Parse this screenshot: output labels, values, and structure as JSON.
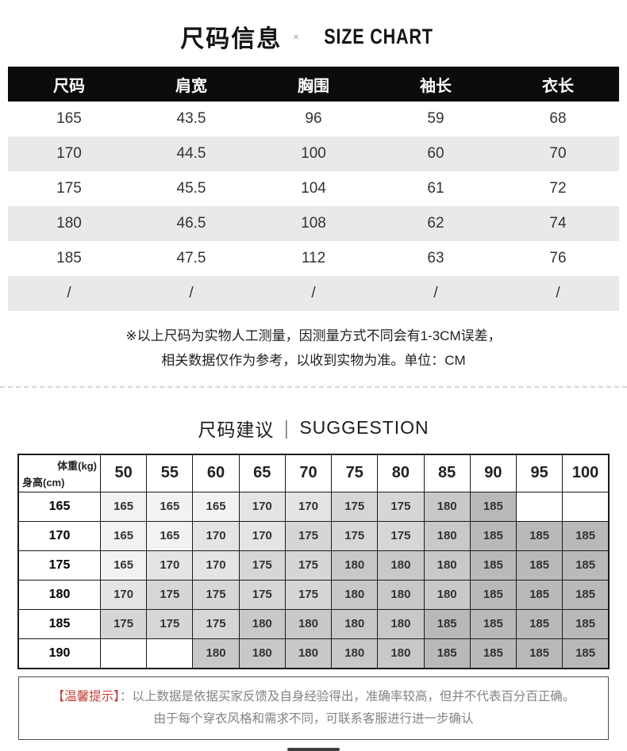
{
  "page": {
    "title_cn": "尺码信息",
    "title_sep": "×",
    "title_en": "SIZE CHART"
  },
  "size_table": {
    "headers": [
      "尺码",
      "肩宽",
      "胸围",
      "袖长",
      "衣长"
    ],
    "rows": [
      [
        "165",
        "43.5",
        "96",
        "59",
        "68"
      ],
      [
        "170",
        "44.5",
        "100",
        "60",
        "70"
      ],
      [
        "175",
        "45.5",
        "104",
        "61",
        "72"
      ],
      [
        "180",
        "46.5",
        "108",
        "62",
        "74"
      ],
      [
        "185",
        "47.5",
        "112",
        "63",
        "76"
      ],
      [
        "/",
        "/",
        "/",
        "/",
        "/"
      ]
    ]
  },
  "notes": {
    "line1": "※以上尺码为实物人工测量，因测量方式不同会有1-3CM误差，",
    "line2": "相关数据仅作为参考，以收到实物为准。单位：CM"
  },
  "suggestion": {
    "title_cn": "尺码建议",
    "title_sep": "｜",
    "title_en": "SUGGESTION",
    "corner_top": "体重(kg)",
    "corner_bottom": "身高(cm)",
    "weights": [
      "50",
      "55",
      "60",
      "65",
      "70",
      "75",
      "80",
      "85",
      "90",
      "95",
      "100"
    ],
    "rows": [
      {
        "height": "165",
        "cells": [
          "165",
          "165",
          "165",
          "170",
          "170",
          "175",
          "175",
          "180",
          "185",
          "",
          ""
        ]
      },
      {
        "height": "170",
        "cells": [
          "165",
          "165",
          "170",
          "170",
          "175",
          "175",
          "175",
          "180",
          "185",
          "185",
          "185"
        ]
      },
      {
        "height": "175",
        "cells": [
          "165",
          "170",
          "170",
          "175",
          "175",
          "180",
          "180",
          "180",
          "185",
          "185",
          "185"
        ]
      },
      {
        "height": "180",
        "cells": [
          "170",
          "175",
          "175",
          "175",
          "175",
          "180",
          "180",
          "180",
          "185",
          "185",
          "185"
        ]
      },
      {
        "height": "185",
        "cells": [
          "175",
          "175",
          "175",
          "180",
          "180",
          "180",
          "180",
          "185",
          "185",
          "185",
          "185"
        ]
      },
      {
        "height": "190",
        "cells": [
          "",
          "",
          "180",
          "180",
          "180",
          "180",
          "180",
          "185",
          "185",
          "185",
          "185"
        ]
      }
    ]
  },
  "tip": {
    "label": "【温馨提示】",
    "colon": "：",
    "line1": "以上数据是依据买家反馈及自身经验得出，准确率较高，但并不代表百分百正确。",
    "line2": "由于每个穿衣风格和需求不同，可联系客服进行进一步确认"
  },
  "colors": {
    "header_bg": "#0c0c0c",
    "row_alt_bg": "#e9e9e9",
    "tip_label": "#c5413a",
    "cell_shades": {
      "165": "#f2f2f2",
      "170": "#e4e4e4",
      "175": "#d6d6d6",
      "180": "#c8c8c8",
      "185": "#b9b9b9",
      "": "#ffffff"
    }
  }
}
